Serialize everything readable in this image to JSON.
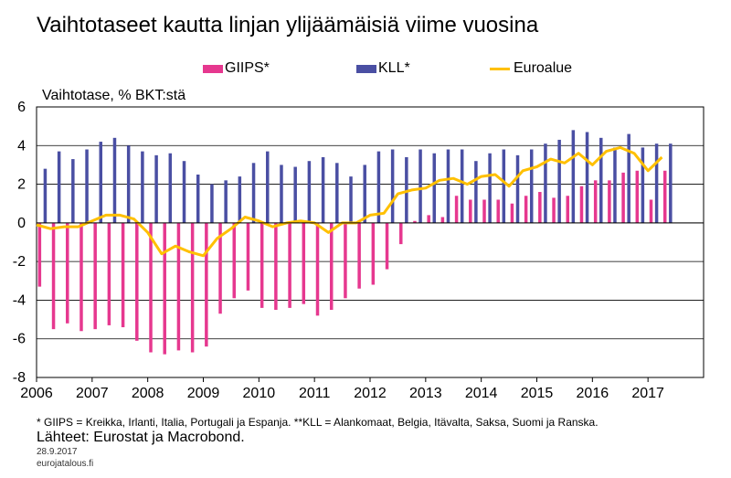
{
  "title": "Vaihtotaseet kautta linjan ylijäämäisiä viime vuosina",
  "legend": [
    {
      "name": "GIIPS*",
      "color": "#e6388f",
      "kind": "bar"
    },
    {
      "name": "KLL*",
      "color": "#4a4fa3",
      "kind": "bar"
    },
    {
      "name": "Euroalue",
      "color": "#ffc000",
      "kind": "line"
    }
  ],
  "footnote": "* GIIPS = Kreikka, Irlanti, Italia, Portugali ja Espanja. **KLL = Alankomaat, Belgia, Itävalta, Saksa, Suomi ja Ranska.",
  "sources": "Lähteet: Eurostat ja Macrobond.",
  "date": "28.9.2017",
  "site": "eurojatalous.fi",
  "chart_data": {
    "type": "bar",
    "ylabel": "Vaihtotase, % BKT:stä",
    "xlabel": "",
    "ylim": [
      -8,
      6
    ],
    "yticks": [
      "-8",
      "-6",
      "-4",
      "-2",
      "0",
      "2",
      "4",
      "6"
    ],
    "xlim": [
      2006,
      2018
    ],
    "xticks": [
      "2006",
      "2007",
      "2008",
      "2009",
      "2010",
      "2011",
      "2012",
      "2013",
      "2014",
      "2015",
      "2016",
      "2017"
    ],
    "grid": "horizontal",
    "legend_position": "top",
    "x": [
      2006.0,
      2006.25,
      2006.5,
      2006.75,
      2007.0,
      2007.25,
      2007.5,
      2007.75,
      2008.0,
      2008.25,
      2008.5,
      2008.75,
      2009.0,
      2009.25,
      2009.5,
      2009.75,
      2010.0,
      2010.25,
      2010.5,
      2010.75,
      2011.0,
      2011.25,
      2011.5,
      2011.75,
      2012.0,
      2012.25,
      2012.5,
      2012.75,
      2013.0,
      2013.25,
      2013.5,
      2013.75,
      2014.0,
      2014.25,
      2014.5,
      2014.75,
      2015.0,
      2015.25,
      2015.5,
      2015.75,
      2016.0,
      2016.25,
      2016.5,
      2016.75,
      2017.0,
      2017.25
    ],
    "series": [
      {
        "name": "GIIPS*",
        "type": "bar",
        "color": "#e6388f",
        "values": [
          -3.3,
          -5.5,
          -5.2,
          -5.6,
          -5.5,
          -5.3,
          -5.4,
          -6.1,
          -6.7,
          -6.8,
          -6.6,
          -6.7,
          -6.4,
          -4.7,
          -3.9,
          -3.5,
          -4.4,
          -4.5,
          -4.4,
          -4.2,
          -4.8,
          -4.5,
          -3.9,
          -3.4,
          -3.2,
          -2.4,
          -1.1,
          0.1,
          0.4,
          0.3,
          1.4,
          1.2,
          1.2,
          1.2,
          1.0,
          1.4,
          1.6,
          1.3,
          1.4,
          1.9,
          2.2,
          2.2,
          2.6,
          2.7,
          1.2,
          2.7
        ]
      },
      {
        "name": "KLL*",
        "type": "bar",
        "color": "#4a4fa3",
        "values": [
          2.8,
          3.7,
          3.3,
          3.8,
          4.2,
          4.4,
          4.0,
          3.7,
          3.5,
          3.6,
          3.2,
          2.5,
          2.0,
          2.2,
          2.4,
          3.1,
          3.7,
          3.0,
          2.9,
          3.2,
          3.4,
          3.1,
          2.4,
          3.0,
          3.7,
          3.8,
          3.4,
          3.8,
          3.6,
          3.8,
          3.8,
          3.2,
          3.6,
          3.8,
          3.5,
          3.8,
          4.1,
          4.3,
          4.8,
          4.7,
          4.4,
          3.9,
          4.6,
          3.9,
          4.1,
          4.1
        ]
      },
      {
        "name": "Euroalue",
        "type": "line",
        "color": "#ffc000",
        "values": [
          -0.1,
          -0.3,
          -0.2,
          -0.2,
          0.1,
          0.4,
          0.4,
          0.2,
          -0.5,
          -1.6,
          -1.2,
          -1.5,
          -1.7,
          -0.8,
          -0.3,
          0.3,
          0.1,
          -0.2,
          0.0,
          0.1,
          0.0,
          -0.5,
          0.0,
          0.0,
          0.4,
          0.5,
          1.5,
          1.7,
          1.8,
          2.2,
          2.3,
          2.0,
          2.4,
          2.5,
          1.9,
          2.7,
          2.9,
          3.3,
          3.1,
          3.6,
          3.0,
          3.7,
          3.9,
          3.6,
          2.7,
          3.4
        ]
      }
    ]
  }
}
